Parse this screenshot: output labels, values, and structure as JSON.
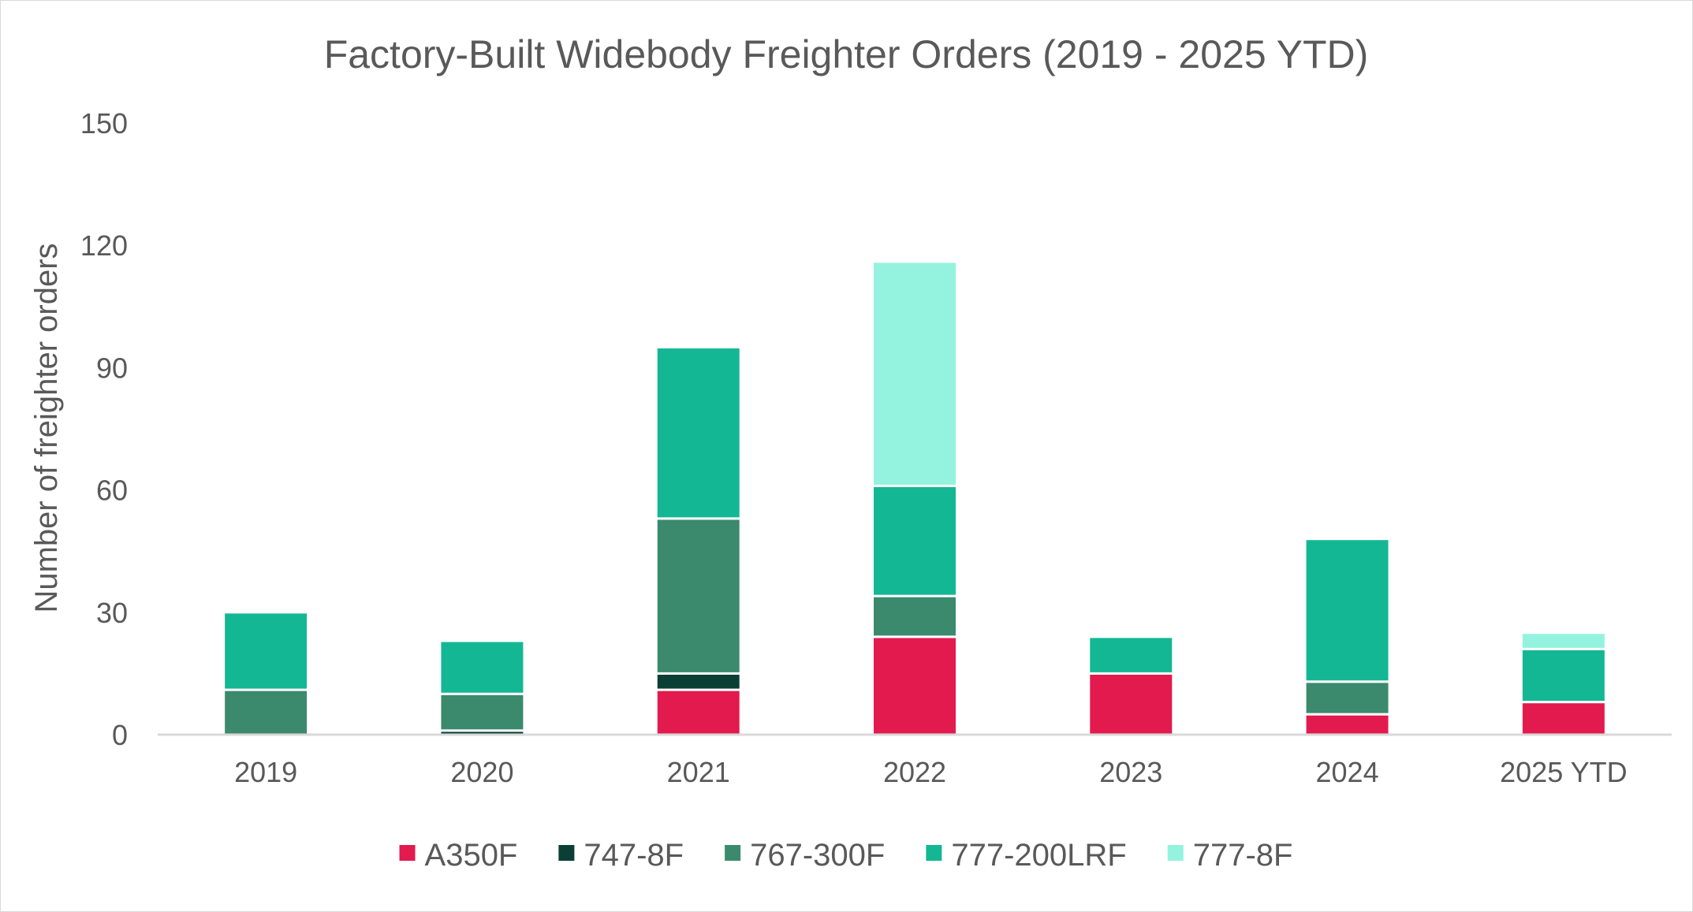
{
  "chart_data": {
    "type": "bar",
    "stacked": true,
    "title": "Factory-Built Widebody Freighter Orders (2019 - 2025 YTD)",
    "xlabel": "",
    "ylabel": "Number of freighter orders",
    "ylim": [
      0,
      150
    ],
    "yticks": [
      "0",
      "30",
      "60",
      "90",
      "120",
      "150"
    ],
    "categories": [
      "2019",
      "2020",
      "2021",
      "2022",
      "2023",
      "2024",
      "2025 YTD"
    ],
    "series": [
      {
        "name": "A350F",
        "color": "#e31a4e",
        "values": [
          0,
          0,
          11,
          24,
          15,
          5,
          8
        ]
      },
      {
        "name": "747-8F",
        "color": "#0b3f36",
        "values": [
          0,
          1,
          4,
          0,
          0,
          0,
          0
        ]
      },
      {
        "name": "767-300F",
        "color": "#3b8a6e",
        "values": [
          11,
          9,
          38,
          10,
          0,
          8,
          0
        ]
      },
      {
        "name": "777-200LRF",
        "color": "#14b794",
        "values": [
          19,
          13,
          42,
          27,
          9,
          35,
          13
        ]
      },
      {
        "name": "777-8F",
        "color": "#93f3de",
        "values": [
          0,
          0,
          0,
          55,
          0,
          0,
          4
        ]
      }
    ],
    "grid": false,
    "legend_position": "bottom",
    "axis_color": "#d9d9d9",
    "separator_color": "#ffffff"
  }
}
